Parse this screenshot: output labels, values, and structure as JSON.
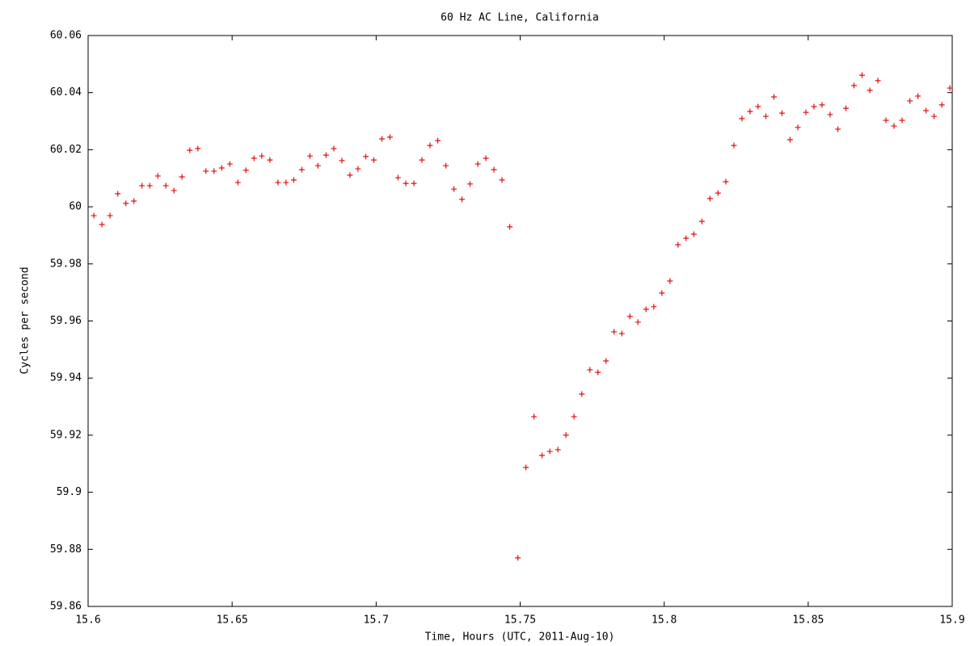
{
  "chart_data": {
    "type": "scatter",
    "title": "60 Hz AC Line, California",
    "x_label": "Time, Hours (UTC, 2011-Aug-10)",
    "y_label": "Cycles per second",
    "color": "#e01010",
    "marker": "+",
    "x": [
      15.602,
      15.6048,
      15.6076,
      15.6103,
      15.6131,
      15.6159,
      15.6187,
      15.6214,
      15.6242,
      15.627,
      15.6298,
      15.6326,
      15.6353,
      15.6381,
      15.6409,
      15.6437,
      15.6464,
      15.6492,
      15.652,
      15.6548,
      15.6576,
      15.6603,
      15.6631,
      15.6659,
      15.6687,
      15.6714,
      15.6742,
      15.677,
      15.6798,
      15.6826,
      15.6853,
      15.6881,
      15.6909,
      15.6937,
      15.6964,
      15.6992,
      15.702,
      15.7048,
      15.7076,
      15.7103,
      15.7131,
      15.7159,
      15.7187,
      15.7214,
      15.7242,
      15.727,
      15.7298,
      15.7326,
      15.7353,
      15.7381,
      15.7409,
      15.7437,
      15.7464,
      15.7492,
      15.752,
      15.7548,
      15.7576,
      15.7603,
      15.7631,
      15.7659,
      15.7687,
      15.7714,
      15.7742,
      15.777,
      15.7798,
      15.7826,
      15.7853,
      15.7881,
      15.7909,
      15.7937,
      15.7964,
      15.7992,
      15.802,
      15.8048,
      15.8076,
      15.8103,
      15.8131,
      15.8159,
      15.8187,
      15.8214,
      15.8242,
      15.827,
      15.8298,
      15.8326,
      15.8353,
      15.8381,
      15.8409,
      15.8437,
      15.8464,
      15.8492,
      15.852,
      15.8548,
      15.8576,
      15.8603,
      15.8631,
      15.8659,
      15.8687,
      15.8714,
      15.8742,
      15.877,
      15.8798,
      15.8826,
      15.8853,
      15.8881,
      15.8909,
      15.8937,
      15.8964,
      15.8992
    ],
    "values": [
      59.9969,
      59.9938,
      59.9969,
      60.0046,
      60.0012,
      60.002,
      60.0074,
      60.0074,
      60.0108,
      60.0074,
      60.0057,
      60.0105,
      60.0198,
      60.0204,
      60.0125,
      60.0125,
      60.0136,
      60.015,
      60.0085,
      60.0128,
      60.017,
      60.0178,
      60.0164,
      60.0085,
      60.0085,
      60.0094,
      60.013,
      60.0178,
      60.0144,
      60.0181,
      60.0204,
      60.0162,
      60.0111,
      60.0133,
      60.0176,
      60.0164,
      60.0238,
      60.0244,
      60.0102,
      60.0082,
      60.0082,
      60.0164,
      60.0215,
      60.0232,
      60.0144,
      60.0062,
      60.0026,
      60.008,
      60.015,
      60.017,
      60.013,
      60.0094,
      59.993,
      59.877,
      59.9087,
      59.9265,
      59.9129,
      59.9143,
      59.9149,
      59.92,
      59.9265,
      59.9344,
      59.9429,
      59.942,
      59.946,
      59.9562,
      59.9556,
      59.9616,
      59.9596,
      59.9641,
      59.965,
      59.9698,
      59.974,
      59.9867,
      59.989,
      59.9904,
      59.9949,
      60.0029,
      60.0048,
      60.0088,
      60.0215,
      60.0309,
      60.0334,
      60.0351,
      60.0317,
      60.0385,
      60.0328,
      60.0235,
      60.0278,
      60.0331,
      60.0351,
      60.0357,
      60.0323,
      60.0272,
      60.0345,
      60.0425,
      60.0461,
      60.0408,
      60.0442,
      60.0303,
      60.0283,
      60.0303,
      60.0371,
      60.0388,
      60.0337,
      60.0317,
      60.0357,
      60.0416
    ],
    "xlim": [
      15.6,
      15.9
    ],
    "xticks": [
      15.6,
      15.65,
      15.7,
      15.75,
      15.8,
      15.85,
      15.9
    ],
    "ylim": [
      59.86,
      60.06
    ],
    "yticks": [
      59.86,
      59.88,
      59.9,
      59.92,
      59.94,
      59.96,
      59.98,
      60,
      60.02,
      60.04,
      60.06
    ],
    "grid": false
  }
}
